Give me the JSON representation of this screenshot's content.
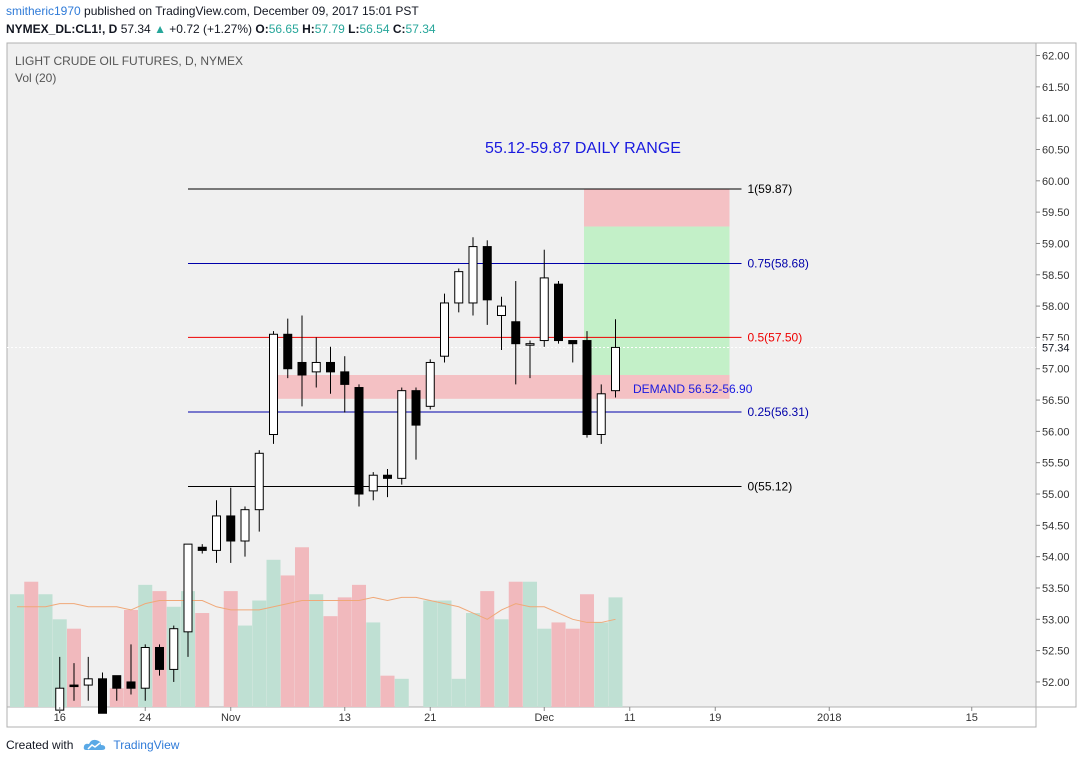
{
  "header": {
    "user": "smitheric1970",
    "published": "published on TradingView.com, December 09, 2017 15:01 PST",
    "symbol": "NYMEX_DL:CL1!, D",
    "last": "57.34",
    "up_arrow": "▲",
    "change": "+0.72 (+1.27%)",
    "o_label": "O:",
    "o_value": "56.65",
    "h_label": "H:",
    "h_value": "57.79",
    "l_label": "L:",
    "l_value": "56.54",
    "c_label": "C:",
    "c_value": "57.34"
  },
  "footer": {
    "created_with": "Created with",
    "brand": "TradingView",
    "logo_icon": "tradingview-cloud-icon"
  },
  "colors": {
    "up_candle": "#ffffff",
    "down_candle": "#000000",
    "vol_up": "#bfe0d3",
    "vol_down": "#f1b9bd",
    "fib_black": "#000000",
    "fib_blue": "#0000aa",
    "fib_red": "#ee0000",
    "demand_zone": "#f4c1c4",
    "target_green": "#c3f0c8",
    "stop_red": "#f4c1c4",
    "vol_ma": "#f0a878"
  },
  "chart_data": {
    "type": "candlestick",
    "title": "LIGHT CRUDE OIL FUTURES, D, NYMEX",
    "volume_label": "Vol (20)",
    "annotation_range": "55.12-59.87 DAILY RANGE",
    "annotation_demand": "DEMAND 56.52-56.90",
    "last_price_label": "57.34",
    "ylim": [
      51.6,
      62.2
    ],
    "y_ticks": [
      "62.00",
      "61.50",
      "61.00",
      "60.50",
      "60.00",
      "59.50",
      "59.00",
      "58.50",
      "58.00",
      "57.50",
      "57.00",
      "56.50",
      "56.00",
      "55.50",
      "55.00",
      "54.50",
      "54.00",
      "53.50",
      "53.00",
      "52.50",
      "52.00"
    ],
    "x_ticks": [
      {
        "label": "16",
        "i": 3
      },
      {
        "label": "24",
        "i": 9
      },
      {
        "label": "Nov",
        "i": 15
      },
      {
        "label": "13",
        "i": 23
      },
      {
        "label": "21",
        "i": 29
      },
      {
        "label": "Dec",
        "i": 37
      },
      {
        "label": "11",
        "i": 43
      },
      {
        "label": "19",
        "i": 49
      },
      {
        "label": "2018",
        "i": 57
      },
      {
        "label": "15",
        "i": 67
      }
    ],
    "candles": [
      {
        "i": 0,
        "o": 51.6,
        "h": 51.6,
        "l": 51.6,
        "c": 51.6,
        "v": 53.4,
        "dir": "up"
      },
      {
        "i": 1,
        "o": 51.6,
        "h": 51.6,
        "l": 51.6,
        "c": 51.6,
        "v": 53.6,
        "dir": "down"
      },
      {
        "i": 2,
        "o": 51.6,
        "h": 51.6,
        "l": 51.6,
        "c": 51.6,
        "v": 53.4,
        "dir": "up"
      },
      {
        "i": 3,
        "o": 51.55,
        "h": 52.4,
        "l": 51.5,
        "c": 51.9,
        "v": 53.0,
        "dir": "up"
      },
      {
        "i": 4,
        "o": 51.95,
        "h": 52.3,
        "l": 51.7,
        "c": 51.95,
        "v": 52.85,
        "dir": "down"
      },
      {
        "i": 5,
        "o": 51.95,
        "h": 52.4,
        "l": 51.7,
        "c": 52.05,
        "v": 51.6,
        "dir": "up"
      },
      {
        "i": 6,
        "o": 52.05,
        "h": 52.15,
        "l": 51.5,
        "c": 51.5,
        "v": 51.6,
        "dir": "down"
      },
      {
        "i": 7,
        "o": 52.1,
        "h": 52.1,
        "l": 51.7,
        "c": 51.9,
        "v": 51.9,
        "dir": "down"
      },
      {
        "i": 8,
        "o": 51.9,
        "h": 52.6,
        "l": 51.8,
        "c": 52.0,
        "v": 53.15,
        "dir": "down"
      },
      {
        "i": 9,
        "o": 51.9,
        "h": 52.6,
        "l": 51.7,
        "c": 52.55,
        "v": 53.55,
        "dir": "up"
      },
      {
        "i": 10,
        "o": 52.55,
        "h": 52.6,
        "l": 52.1,
        "c": 52.2,
        "v": 53.45,
        "dir": "down"
      },
      {
        "i": 11,
        "o": 52.2,
        "h": 52.9,
        "l": 52.0,
        "c": 52.85,
        "v": 53.2,
        "dir": "up"
      },
      {
        "i": 12,
        "o": 52.8,
        "h": 54.2,
        "l": 52.4,
        "c": 54.2,
        "v": 53.45,
        "dir": "up"
      },
      {
        "i": 13,
        "o": 54.15,
        "h": 54.2,
        "l": 54.05,
        "c": 54.1,
        "v": 53.1,
        "dir": "down"
      },
      {
        "i": 14,
        "o": 54.1,
        "h": 54.9,
        "l": 53.9,
        "c": 54.65,
        "v": 51.6,
        "dir": "up"
      },
      {
        "i": 15,
        "o": 54.65,
        "h": 55.1,
        "l": 53.9,
        "c": 54.25,
        "v": 53.45,
        "dir": "down"
      },
      {
        "i": 16,
        "o": 54.25,
        "h": 54.8,
        "l": 54.0,
        "c": 54.75,
        "v": 52.9,
        "dir": "up"
      },
      {
        "i": 17,
        "o": 54.75,
        "h": 55.7,
        "l": 54.4,
        "c": 55.65,
        "v": 53.3,
        "dir": "up"
      },
      {
        "i": 18,
        "o": 55.95,
        "h": 57.6,
        "l": 55.8,
        "c": 57.55,
        "v": 53.95,
        "dir": "up"
      },
      {
        "i": 19,
        "o": 57.55,
        "h": 57.8,
        "l": 56.85,
        "c": 57.0,
        "v": 53.7,
        "dir": "down"
      },
      {
        "i": 20,
        "o": 56.9,
        "h": 57.85,
        "l": 56.4,
        "c": 57.1,
        "v": 54.15,
        "dir": "down"
      },
      {
        "i": 21,
        "o": 56.95,
        "h": 57.5,
        "l": 56.7,
        "c": 57.1,
        "v": 53.4,
        "dir": "up"
      },
      {
        "i": 22,
        "o": 57.1,
        "h": 57.35,
        "l": 56.6,
        "c": 56.95,
        "v": 53.05,
        "dir": "down"
      },
      {
        "i": 23,
        "o": 56.95,
        "h": 57.2,
        "l": 56.3,
        "c": 56.75,
        "v": 53.35,
        "dir": "down"
      },
      {
        "i": 24,
        "o": 56.7,
        "h": 56.75,
        "l": 54.8,
        "c": 55.0,
        "v": 53.55,
        "dir": "down"
      },
      {
        "i": 25,
        "o": 55.05,
        "h": 55.35,
        "l": 54.9,
        "c": 55.3,
        "v": 52.95,
        "dir": "up"
      },
      {
        "i": 26,
        "o": 55.3,
        "h": 55.4,
        "l": 54.95,
        "c": 55.25,
        "v": 52.1,
        "dir": "down"
      },
      {
        "i": 27,
        "o": 55.25,
        "h": 56.7,
        "l": 55.15,
        "c": 56.65,
        "v": 52.05,
        "dir": "up"
      },
      {
        "i": 28,
        "o": 56.65,
        "h": 56.7,
        "l": 55.55,
        "c": 56.1,
        "v": 51.6,
        "dir": "down"
      },
      {
        "i": 29,
        "o": 56.4,
        "h": 57.15,
        "l": 56.35,
        "c": 57.1,
        "v": 53.3,
        "dir": "up"
      },
      {
        "i": 30,
        "o": 57.2,
        "h": 58.2,
        "l": 57.1,
        "c": 58.05,
        "v": 53.3,
        "dir": "up"
      },
      {
        "i": 31,
        "o": 58.05,
        "h": 58.6,
        "l": 57.9,
        "c": 58.55,
        "v": 52.05,
        "dir": "up"
      },
      {
        "i": 32,
        "o": 58.05,
        "h": 59.1,
        "l": 57.85,
        "c": 58.95,
        "v": 53.1,
        "dir": "up"
      },
      {
        "i": 33,
        "o": 58.95,
        "h": 59.05,
        "l": 57.7,
        "c": 58.1,
        "v": 53.45,
        "dir": "down"
      },
      {
        "i": 34,
        "o": 57.85,
        "h": 58.15,
        "l": 57.3,
        "c": 58.0,
        "v": 53.0,
        "dir": "up"
      },
      {
        "i": 35,
        "o": 57.75,
        "h": 58.4,
        "l": 56.75,
        "c": 57.4,
        "v": 53.6,
        "dir": "down"
      },
      {
        "i": 36,
        "o": 57.4,
        "h": 57.45,
        "l": 56.85,
        "c": 57.4,
        "v": 53.6,
        "dir": "up"
      },
      {
        "i": 37,
        "o": 57.45,
        "h": 58.9,
        "l": 57.35,
        "c": 58.45,
        "v": 52.85,
        "dir": "up"
      },
      {
        "i": 38,
        "o": 58.35,
        "h": 58.4,
        "l": 57.4,
        "c": 57.45,
        "v": 52.95,
        "dir": "down"
      },
      {
        "i": 39,
        "o": 57.45,
        "h": 57.45,
        "l": 57.1,
        "c": 57.4,
        "v": 52.85,
        "dir": "down"
      },
      {
        "i": 40,
        "o": 57.45,
        "h": 57.6,
        "l": 55.9,
        "c": 55.95,
        "v": 53.4,
        "dir": "down"
      },
      {
        "i": 41,
        "o": 55.95,
        "h": 56.75,
        "l": 55.8,
        "c": 56.6,
        "v": 52.95,
        "dir": "up"
      },
      {
        "i": 42,
        "o": 56.65,
        "h": 57.79,
        "l": 56.54,
        "c": 57.34,
        "v": 53.35,
        "dir": "up"
      }
    ],
    "vol_ma": [
      53.2,
      53.2,
      53.2,
      53.25,
      53.25,
      53.2,
      53.2,
      53.2,
      53.15,
      53.25,
      53.3,
      53.3,
      53.3,
      53.3,
      53.2,
      53.15,
      53.15,
      53.15,
      53.2,
      53.25,
      53.3,
      53.3,
      53.3,
      53.3,
      53.3,
      53.35,
      53.3,
      53.35,
      53.35,
      53.3,
      53.25,
      53.2,
      53.1,
      53.0,
      53.15,
      53.25,
      53.2,
      53.2,
      53.1,
      53.0,
      52.95,
      52.95,
      53.0
    ],
    "fib_levels": [
      {
        "value": 59.87,
        "label": "1(59.87)",
        "color": "#000000"
      },
      {
        "value": 58.68,
        "label": "0.75(58.68)",
        "color": "#0000aa"
      },
      {
        "value": 57.5,
        "label": "0.5(57.50)",
        "color": "#ee0000"
      },
      {
        "value": 56.31,
        "label": "0.25(56.31)",
        "color": "#0000aa"
      },
      {
        "value": 55.12,
        "label": "0(55.12)",
        "color": "#000000"
      }
    ],
    "fib_start_i": 12,
    "fib_end_i": 50,
    "demand_zone": {
      "low": 56.52,
      "high": 56.9,
      "start_i": 18,
      "end_i": 50
    },
    "position_box": {
      "entry": 56.9,
      "target": 59.27,
      "stop": 59.87,
      "start_i": 40,
      "end_i": 50
    }
  }
}
